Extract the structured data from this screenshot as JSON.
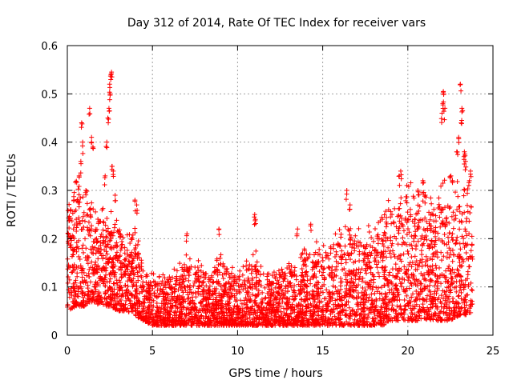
{
  "chart_data": {
    "type": "scatter",
    "title": "Day 312 of 2014, Rate Of TEC Index for receiver vars",
    "xlabel": "GPS time / hours",
    "ylabel": "ROTI / TECUs",
    "xlim": [
      0,
      25
    ],
    "ylim": [
      0,
      0.6
    ],
    "x_ticks": [
      "0",
      "5",
      "10",
      "15",
      "20",
      "25"
    ],
    "y_ticks": [
      "0",
      "0.1",
      "0.2",
      "0.3",
      "0.4",
      "0.5",
      "0.6"
    ],
    "grid": true,
    "marker": "+",
    "series_color": "#ff0000",
    "envelope": {
      "description": "approximate per-hour profile of the plotted ROTI values",
      "hours": [
        0,
        0.5,
        1,
        1.5,
        2,
        2.5,
        3,
        3.5,
        4,
        4.5,
        5,
        5.5,
        6,
        6.5,
        7,
        7.5,
        8,
        8.5,
        9,
        9.5,
        10,
        10.5,
        11,
        11.5,
        12,
        12.5,
        13,
        13.5,
        14,
        14.5,
        15,
        15.5,
        16,
        16.5,
        17,
        17.5,
        18,
        18.5,
        19,
        19.5,
        20,
        20.5,
        21,
        21.5,
        22,
        22.5,
        23,
        23.5,
        23.8
      ],
      "base": [
        0.05,
        0.06,
        0.06,
        0.07,
        0.06,
        0.06,
        0.05,
        0.05,
        0.04,
        0.03,
        0.02,
        0.02,
        0.02,
        0.02,
        0.02,
        0.02,
        0.02,
        0.02,
        0.02,
        0.02,
        0.02,
        0.02,
        0.02,
        0.02,
        0.02,
        0.02,
        0.02,
        0.02,
        0.02,
        0.02,
        0.02,
        0.02,
        0.02,
        0.02,
        0.02,
        0.02,
        0.02,
        0.02,
        0.03,
        0.03,
        0.03,
        0.03,
        0.03,
        0.03,
        0.03,
        0.03,
        0.04,
        0.04,
        0.05
      ],
      "top": [
        0.25,
        0.3,
        0.3,
        0.28,
        0.25,
        0.24,
        0.22,
        0.2,
        0.2,
        0.16,
        0.12,
        0.12,
        0.12,
        0.13,
        0.16,
        0.15,
        0.13,
        0.12,
        0.17,
        0.13,
        0.13,
        0.14,
        0.16,
        0.13,
        0.12,
        0.13,
        0.14,
        0.14,
        0.17,
        0.17,
        0.19,
        0.17,
        0.22,
        0.22,
        0.2,
        0.2,
        0.22,
        0.24,
        0.26,
        0.27,
        0.3,
        0.28,
        0.28,
        0.26,
        0.3,
        0.3,
        0.3,
        0.3,
        0.28
      ]
    },
    "spikes": [
      {
        "x": 0.2,
        "y": 0.26
      },
      {
        "x": 0.4,
        "y": 0.28
      },
      {
        "x": 0.7,
        "y": 0.33
      },
      {
        "x": 0.8,
        "y": 0.36
      },
      {
        "x": 0.9,
        "y": 0.4
      },
      {
        "x": 0.85,
        "y": 0.44
      },
      {
        "x": 1.3,
        "y": 0.47
      },
      {
        "x": 1.4,
        "y": 0.41
      },
      {
        "x": 1.5,
        "y": 0.39
      },
      {
        "x": 1.1,
        "y": 0.3
      },
      {
        "x": 2.2,
        "y": 0.33
      },
      {
        "x": 2.3,
        "y": 0.4
      },
      {
        "x": 2.4,
        "y": 0.45
      },
      {
        "x": 2.45,
        "y": 0.47
      },
      {
        "x": 2.5,
        "y": 0.5
      },
      {
        "x": 2.5,
        "y": 0.52
      },
      {
        "x": 2.55,
        "y": 0.54
      },
      {
        "x": 2.6,
        "y": 0.545
      },
      {
        "x": 2.6,
        "y": 0.35
      },
      {
        "x": 2.7,
        "y": 0.34
      },
      {
        "x": 2.8,
        "y": 0.29
      },
      {
        "x": 4.0,
        "y": 0.28
      },
      {
        "x": 4.1,
        "y": 0.27
      },
      {
        "x": 7.0,
        "y": 0.21
      },
      {
        "x": 8.9,
        "y": 0.22
      },
      {
        "x": 11.0,
        "y": 0.25
      },
      {
        "x": 11.05,
        "y": 0.24
      },
      {
        "x": 13.5,
        "y": 0.22
      },
      {
        "x": 14.3,
        "y": 0.23
      },
      {
        "x": 16.4,
        "y": 0.3
      },
      {
        "x": 16.6,
        "y": 0.27
      },
      {
        "x": 19.5,
        "y": 0.33
      },
      {
        "x": 19.6,
        "y": 0.34
      },
      {
        "x": 20.6,
        "y": 0.3
      },
      {
        "x": 20.9,
        "y": 0.32
      },
      {
        "x": 21.0,
        "y": 0.29
      },
      {
        "x": 22.0,
        "y": 0.46
      },
      {
        "x": 22.05,
        "y": 0.48
      },
      {
        "x": 22.1,
        "y": 0.5
      },
      {
        "x": 22.1,
        "y": 0.505
      },
      {
        "x": 22.15,
        "y": 0.47
      },
      {
        "x": 22.5,
        "y": 0.33
      },
      {
        "x": 22.6,
        "y": 0.32
      },
      {
        "x": 22.9,
        "y": 0.38
      },
      {
        "x": 23.0,
        "y": 0.41
      },
      {
        "x": 23.1,
        "y": 0.52
      },
      {
        "x": 23.2,
        "y": 0.47
      },
      {
        "x": 23.15,
        "y": 0.445
      },
      {
        "x": 23.3,
        "y": 0.37
      },
      {
        "x": 23.35,
        "y": 0.38
      },
      {
        "x": 23.4,
        "y": 0.36
      },
      {
        "x": 23.6,
        "y": 0.32
      },
      {
        "x": 23.7,
        "y": 0.34
      }
    ]
  }
}
